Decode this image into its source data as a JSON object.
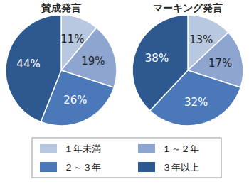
{
  "chart_data": [
    {
      "type": "pie",
      "title": "賛成発言",
      "categories": [
        "１年未満",
        "１～２年",
        "２～３年",
        "３年以上"
      ],
      "values": [
        11,
        19,
        26,
        44
      ],
      "value_labels": [
        "11%",
        "19%",
        "26%",
        "44%"
      ],
      "colors": [
        "#b9c8e1",
        "#8ea5d0",
        "#4b78b9",
        "#2e5990"
      ],
      "data_labels": true,
      "legend": "bottom"
    },
    {
      "type": "pie",
      "title": "マーキング発言",
      "categories": [
        "１年未満",
        "１～２年",
        "２～３年",
        "３年以上"
      ],
      "values": [
        13,
        17,
        32,
        38
      ],
      "value_labels": [
        "13%",
        "17%",
        "32%",
        "38%"
      ],
      "colors": [
        "#b9c8e1",
        "#8ea5d0",
        "#4b78b9",
        "#2e5990"
      ],
      "data_labels": true,
      "legend": "bottom"
    }
  ]
}
